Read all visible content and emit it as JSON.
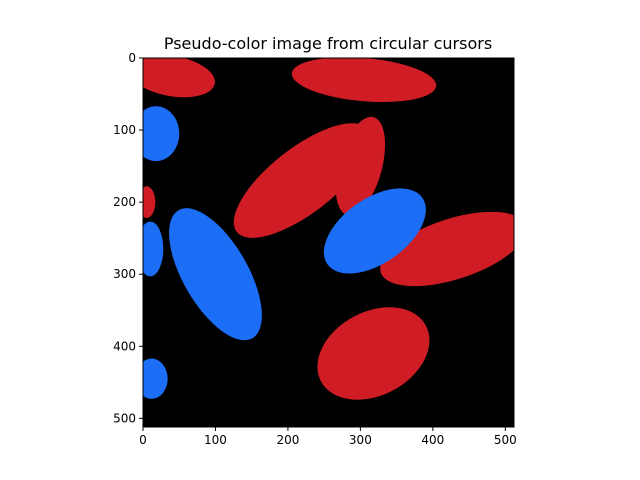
{
  "chart_data": {
    "type": "heatmap",
    "title": "Pseudo-color image from circular cursors",
    "xlabel": "",
    "ylabel": "",
    "xlim": [
      0,
      512
    ],
    "ylim": [
      512,
      0
    ],
    "x_ticks": [
      0,
      100,
      200,
      300,
      400,
      500
    ],
    "y_ticks": [
      0,
      100,
      200,
      300,
      400,
      500
    ],
    "grid": false,
    "legend": "none",
    "colors": {
      "background": "#000000",
      "class_red": "#d01c24",
      "class_blue": "#1b6ef5"
    },
    "regions": [
      {
        "class": "red",
        "cx": 40,
        "cy": 25,
        "rx": 60,
        "ry": 28,
        "angle": 10
      },
      {
        "class": "red",
        "cx": 305,
        "cy": 30,
        "rx": 100,
        "ry": 30,
        "angle": 5
      },
      {
        "class": "red",
        "cx": 220,
        "cy": 170,
        "rx": 115,
        "ry": 45,
        "angle": -38
      },
      {
        "class": "red",
        "cx": 300,
        "cy": 150,
        "rx": 70,
        "ry": 30,
        "angle": -75
      },
      {
        "class": "red",
        "cx": 5,
        "cy": 200,
        "rx": 12,
        "ry": 22,
        "angle": 0
      },
      {
        "class": "red",
        "cx": 428,
        "cy": 265,
        "rx": 105,
        "ry": 42,
        "angle": -18
      },
      {
        "class": "red",
        "cx": 318,
        "cy": 410,
        "rx": 82,
        "ry": 58,
        "angle": -28
      },
      {
        "class": "blue",
        "cx": 18,
        "cy": 105,
        "rx": 32,
        "ry": 38,
        "angle": 0
      },
      {
        "class": "blue",
        "cx": 320,
        "cy": 240,
        "rx": 80,
        "ry": 45,
        "angle": -35
      },
      {
        "class": "blue",
        "cx": 100,
        "cy": 300,
        "rx": 102,
        "ry": 45,
        "angle": 60
      },
      {
        "class": "blue",
        "cx": 10,
        "cy": 265,
        "rx": 18,
        "ry": 38,
        "angle": 0
      },
      {
        "class": "blue",
        "cx": 12,
        "cy": 445,
        "rx": 22,
        "ry": 28,
        "angle": 0
      }
    ]
  }
}
